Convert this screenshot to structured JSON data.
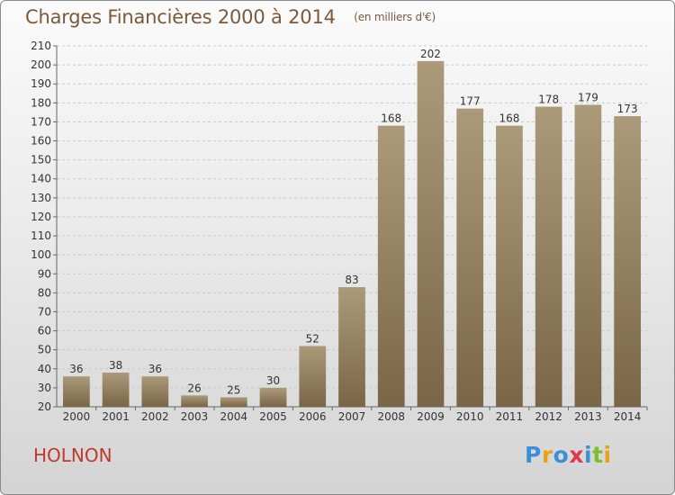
{
  "header": {
    "title": "Charges Financières 2000 à 2014",
    "subtitle": "(en milliers d'€)"
  },
  "location": "HOLNON",
  "logo": {
    "letters": [
      "P",
      "r",
      "o",
      "x",
      "i",
      "t",
      "i"
    ],
    "colors": [
      "#3a8fd8",
      "#e8a21a",
      "#3a8fd8",
      "#e2384d",
      "#3a8fd8",
      "#7bbf2a",
      "#e8a21a"
    ]
  },
  "colors": {
    "bar_top": "#ab9a7a",
    "bar_bottom": "#7a6647",
    "title": "#7a5a3a",
    "location": "#c0392b"
  },
  "chart_data": {
    "type": "bar",
    "title": "Charges Financières 2000 à 2014",
    "subtitle": "(en milliers d'€)",
    "categories": [
      "2000",
      "2001",
      "2002",
      "2003",
      "2004",
      "2005",
      "2006",
      "2007",
      "2008",
      "2009",
      "2010",
      "2011",
      "2012",
      "2013",
      "2014"
    ],
    "values": [
      36,
      38,
      36,
      26,
      25,
      30,
      52,
      83,
      168,
      202,
      177,
      168,
      178,
      179,
      173
    ],
    "ylim": [
      20,
      210
    ],
    "ytick_step": 10,
    "grid": true,
    "xlabel": "",
    "ylabel": ""
  }
}
